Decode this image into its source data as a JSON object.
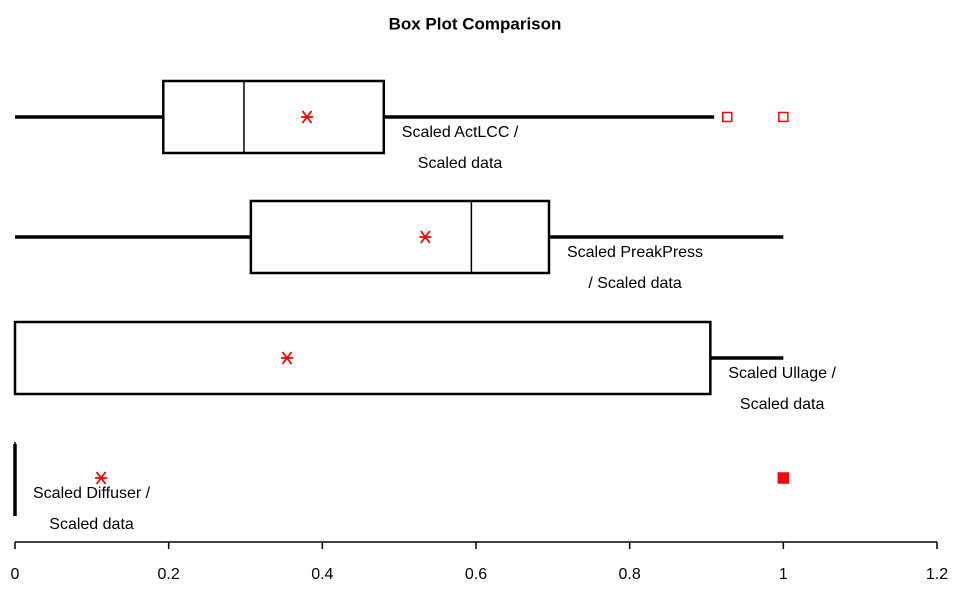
{
  "chart_data": {
    "type": "boxplot",
    "title": "Box Plot Comparison",
    "xlim": [
      0,
      1.2
    ],
    "xticks": [
      0,
      0.2,
      0.4,
      0.6,
      0.8,
      1,
      1.2
    ],
    "box_color": "#000000",
    "mean_color": "#ff0000",
    "outlier_color": "#ff0000",
    "series": [
      {
        "name": [
          "Scaled ActLCC /",
          "Scaled data"
        ],
        "min": 0,
        "q1": 0.193,
        "median": 0.298,
        "q3": 0.48,
        "max": 0.91,
        "mean": 0.38,
        "outliers": [
          0.927,
          1.0
        ],
        "outlier_marker": "open"
      },
      {
        "name": [
          "Scaled PreakPress",
          "/ Scaled data"
        ],
        "min": 0,
        "q1": 0.307,
        "median": 0.594,
        "q3": 0.695,
        "max": 1.0,
        "mean": 0.534,
        "outliers": [],
        "outlier_marker": "open"
      },
      {
        "name": [
          "Scaled Ullage /",
          "Scaled data"
        ],
        "min": 0,
        "q1": 0,
        "median": 0,
        "q3": 0.905,
        "max": 1.0,
        "mean": 0.354,
        "outliers": [],
        "outlier_marker": "open"
      },
      {
        "name": [
          "Scaled Diffuser /",
          "Scaled data"
        ],
        "min": 0,
        "q1": 0,
        "median": 0,
        "q3": 0,
        "max": 0,
        "mean": 0.112,
        "outliers": [
          1.0
        ],
        "outlier_marker": "filled"
      }
    ]
  }
}
